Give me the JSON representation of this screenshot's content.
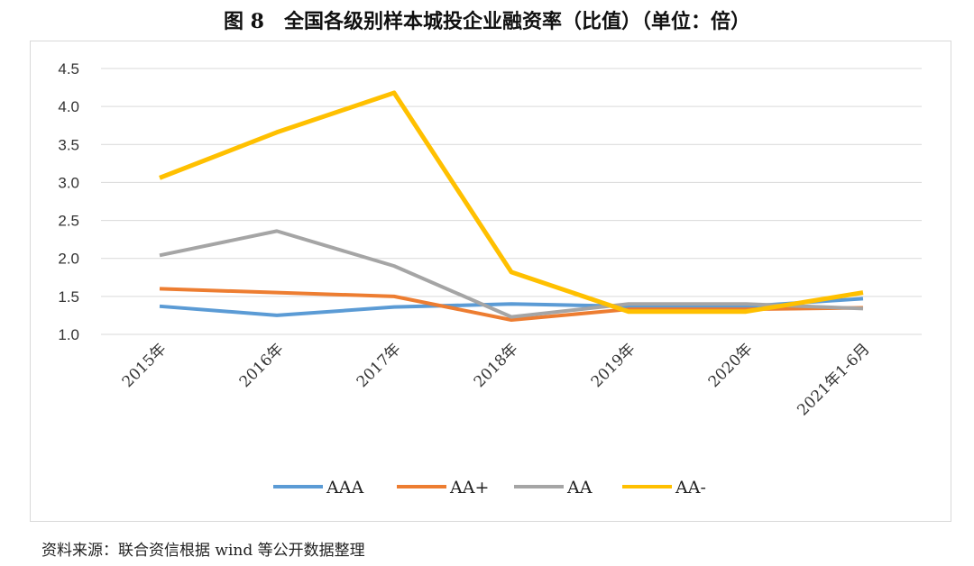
{
  "title": "图 8　全国各级别样本城投企业融资率（比值）（单位：倍）",
  "source": "资料来源：联合资信根据 wind 等公开数据整理",
  "chart_data": {
    "type": "line",
    "title": "图 8　全国各级别样本城投企业融资率（比值）（单位：倍）",
    "categories": [
      "2015年",
      "2016年",
      "2017年",
      "2018年",
      "2019年",
      "2020年",
      "2021年1-6月"
    ],
    "ylim": [
      1.0,
      4.5
    ],
    "yticks": [
      "1.0",
      "1.5",
      "2.0",
      "2.5",
      "3.0",
      "3.5",
      "4.0",
      "4.5"
    ],
    "grid": true,
    "legend": "bottom",
    "series": [
      {
        "name": "AAA",
        "color": "#5b9bd5",
        "values": [
          1.37,
          1.25,
          1.36,
          1.4,
          1.37,
          1.37,
          1.47
        ]
      },
      {
        "name": "AA+",
        "color": "#ed7d31",
        "values": [
          1.6,
          1.55,
          1.5,
          1.19,
          1.33,
          1.33,
          1.35
        ]
      },
      {
        "name": "AA",
        "color": "#a5a5a5",
        "values": [
          2.04,
          2.36,
          1.9,
          1.23,
          1.4,
          1.4,
          1.34
        ]
      },
      {
        "name": "AA-",
        "color": "#ffc000",
        "values": [
          3.06,
          3.66,
          4.18,
          1.82,
          1.3,
          1.3,
          1.55
        ]
      }
    ]
  }
}
